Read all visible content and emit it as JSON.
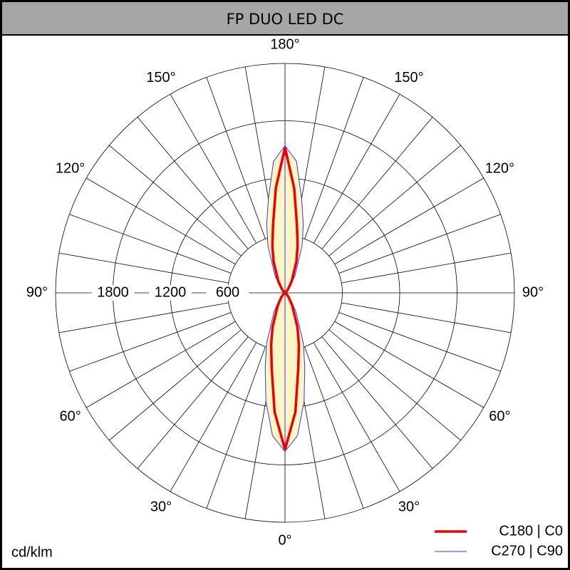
{
  "chart_data": {
    "type": "polar",
    "title": "FP DUO LED DC",
    "unit_label": "cd/klm",
    "angles": [
      0,
      5,
      10,
      15,
      20,
      30,
      40,
      50,
      60,
      70,
      80,
      90,
      100,
      110,
      120,
      130,
      140,
      150,
      160,
      165,
      170,
      175,
      180
    ],
    "series": [
      {
        "name": "C270 | C90",
        "color": "#3333ff",
        "fill": "#fbf6c4",
        "values": [
          1660,
          1500,
          1150,
          800,
          560,
          230,
          90,
          30,
          8,
          0,
          0,
          0,
          0,
          0,
          8,
          25,
          80,
          210,
          520,
          740,
          1000,
          1380,
          1540
        ]
      },
      {
        "name": "C180 | C0",
        "color": "#ee0000",
        "values": [
          1640,
          1250,
          800,
          560,
          380,
          150,
          60,
          20,
          5,
          0,
          0,
          0,
          0,
          0,
          5,
          15,
          50,
          140,
          350,
          510,
          720,
          1100,
          1520
        ]
      }
    ],
    "rlim": [
      0,
      2400
    ],
    "rticks": [
      600,
      1200,
      1800
    ],
    "angle_ticks": [
      {
        "value": 0,
        "label": "0°"
      },
      {
        "value": 30,
        "label": "30°"
      },
      {
        "value": 60,
        "label": "60°"
      },
      {
        "value": 90,
        "label": "90°"
      },
      {
        "value": 120,
        "label": "120°"
      },
      {
        "value": 150,
        "label": "150°"
      },
      {
        "value": 180,
        "label": "180°"
      }
    ],
    "grid_step": 10
  }
}
